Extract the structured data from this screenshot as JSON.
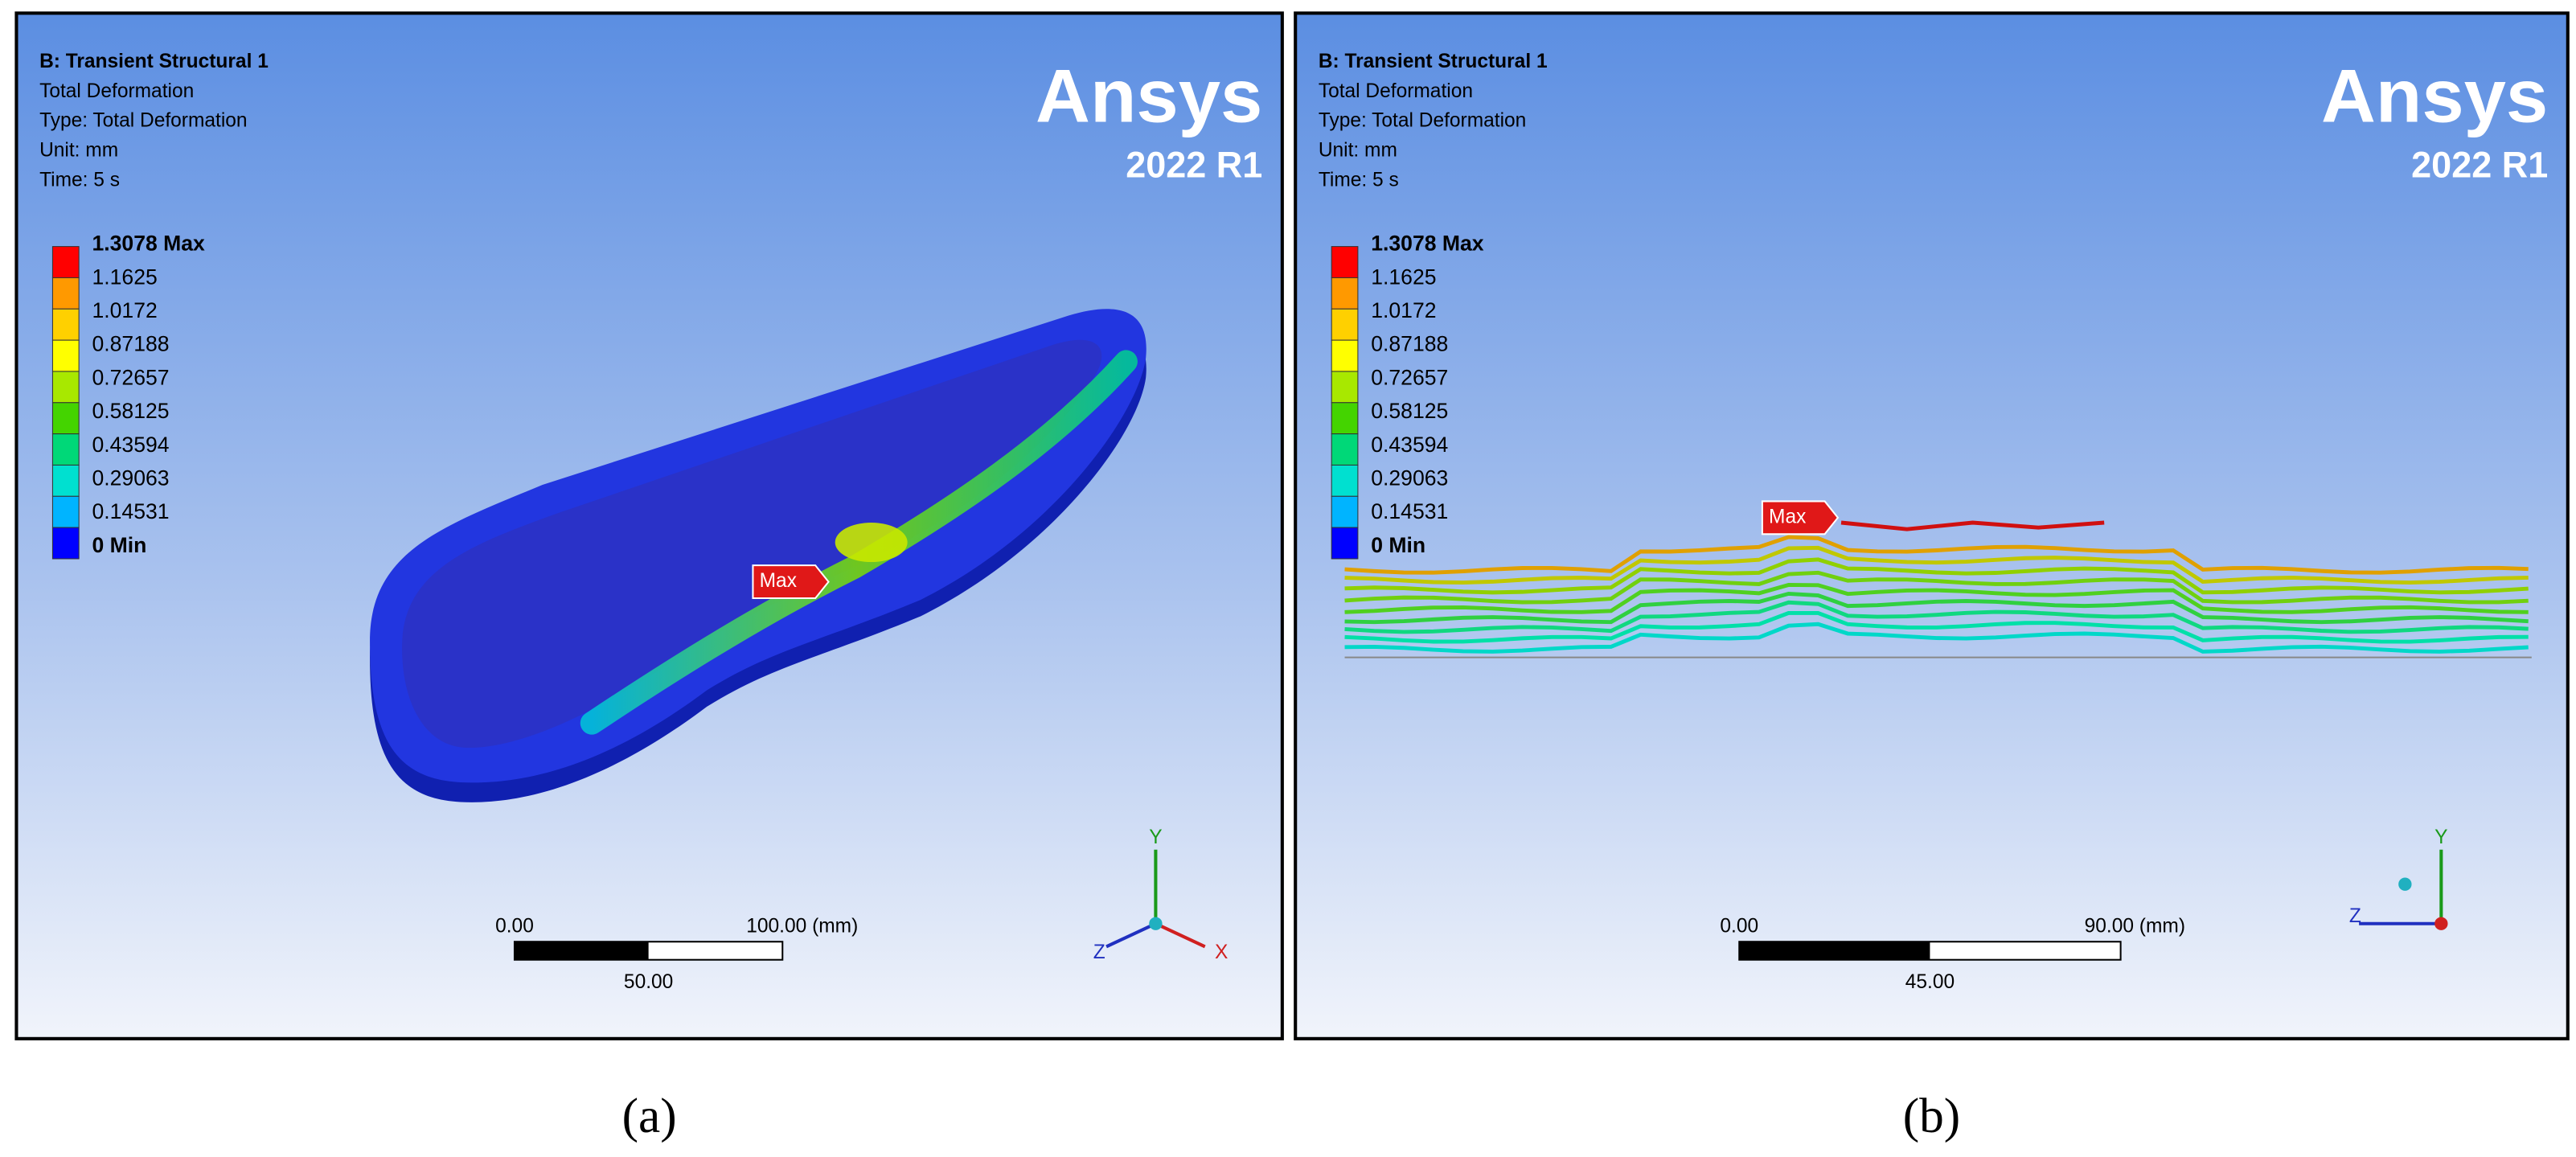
{
  "panels": [
    {
      "header": [
        "B: Transient Structural 1",
        "Total Deformation",
        "Type: Total Deformation",
        "Unit: mm",
        "Time: 5 s"
      ],
      "logo": {
        "name": "Ansys",
        "version": "2022 R1"
      },
      "legend": [
        "1.3078 Max",
        "1.1625",
        "1.0172",
        "0.87188",
        "0.72657",
        "0.58125",
        "0.43594",
        "0.29063",
        "0.14531",
        "0 Min"
      ],
      "probe": "Max",
      "scale": {
        "start": "0.00",
        "end": "100.00 (mm)",
        "mid": "50.00"
      },
      "axes": {
        "y": "Y",
        "z": "Z",
        "x": "X"
      },
      "caption": "(a)"
    },
    {
      "header": [
        "B: Transient Structural 1",
        "Total Deformation",
        "Type: Total Deformation",
        "Unit: mm",
        "Time: 5 s"
      ],
      "logo": {
        "name": "Ansys",
        "version": "2022 R1"
      },
      "legend": [
        "1.3078 Max",
        "1.1625",
        "1.0172",
        "0.87188",
        "0.72657",
        "0.58125",
        "0.43594",
        "0.29063",
        "0.14531",
        "0 Min"
      ],
      "probe": "Max",
      "scale": {
        "start": "0.00",
        "end": "90.00 (mm)",
        "mid": "45.00"
      },
      "axes": {
        "y": "Y",
        "z": "Z"
      },
      "caption": "(b)"
    }
  ]
}
